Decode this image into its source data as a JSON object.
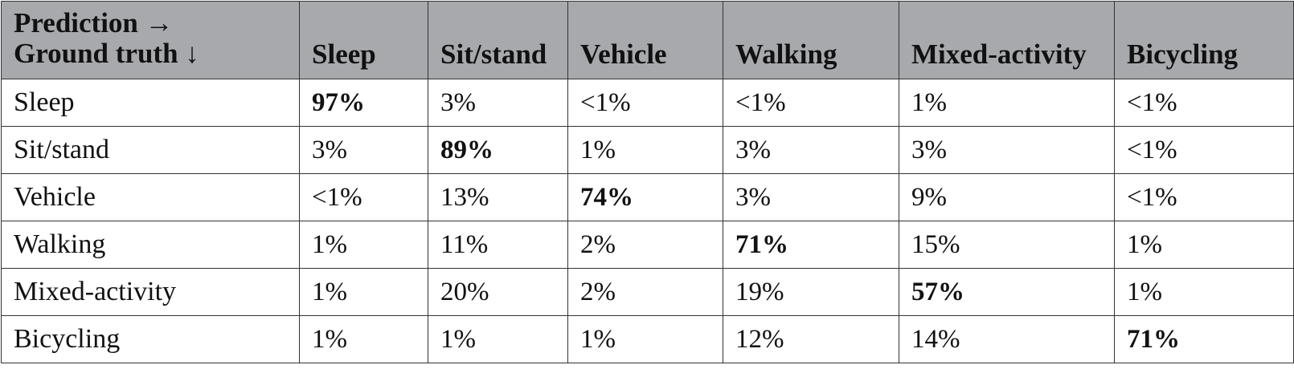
{
  "table": {
    "corner": {
      "line1": "Prediction →",
      "line2": "Ground truth ↓"
    },
    "columns": [
      "Sleep",
      "Sit/stand",
      "Vehicle",
      "Walking",
      "Mixed-activity",
      "Bicycling"
    ],
    "rows": [
      {
        "label": "Sleep",
        "values": [
          "97%",
          "3%",
          "<1%",
          "<1%",
          "1%",
          "<1%"
        ]
      },
      {
        "label": "Sit/stand",
        "values": [
          "3%",
          "89%",
          "1%",
          "3%",
          "3%",
          "<1%"
        ]
      },
      {
        "label": "Vehicle",
        "values": [
          "<1%",
          "13%",
          "74%",
          "3%",
          "9%",
          "<1%"
        ]
      },
      {
        "label": "Walking",
        "values": [
          "1%",
          "11%",
          "2%",
          "71%",
          "15%",
          "1%"
        ]
      },
      {
        "label": "Mixed-activity",
        "values": [
          "1%",
          "20%",
          "2%",
          "19%",
          "57%",
          "1%"
        ]
      },
      {
        "label": "Bicycling",
        "values": [
          "1%",
          "1%",
          "1%",
          "12%",
          "14%",
          "71%"
        ]
      }
    ]
  }
}
